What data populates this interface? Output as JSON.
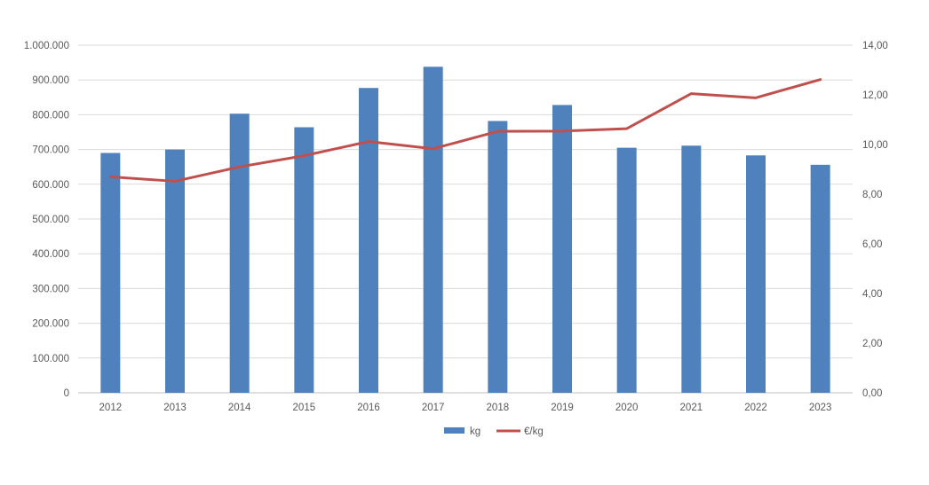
{
  "chart_data": {
    "type": "bar",
    "categories": [
      "2012",
      "2013",
      "2014",
      "2015",
      "2016",
      "2017",
      "2018",
      "2019",
      "2020",
      "2021",
      "2022",
      "2023"
    ],
    "series": [
      {
        "name": "kg",
        "type": "bar",
        "axis": "left",
        "color": "#4F81BD",
        "values": [
          690000,
          700000,
          803000,
          764000,
          877000,
          938000,
          782000,
          828000,
          705000,
          711000,
          683000,
          656000
        ]
      },
      {
        "name": "€/kg",
        "type": "line",
        "axis": "right",
        "color": "#C0504D",
        "values": [
          8.7,
          8.52,
          9.1,
          9.55,
          10.12,
          9.83,
          10.53,
          10.54,
          10.64,
          12.05,
          11.88,
          12.62
        ]
      }
    ],
    "y_left": {
      "ylim": [
        0,
        1000000
      ],
      "ticks": [
        "0",
        "100.000",
        "200.000",
        "300.000",
        "400.000",
        "500.000",
        "600.000",
        "700.000",
        "800.000",
        "900.000",
        "1.000.000"
      ]
    },
    "y_right": {
      "ylim": [
        0,
        14
      ],
      "ticks": [
        "0,00",
        "2,00",
        "4,00",
        "6,00",
        "8,00",
        "10,00",
        "12,00",
        "14,00"
      ]
    },
    "grid": true,
    "legend_position": "bottom",
    "title": "",
    "xlabel": "",
    "ylabel": ""
  }
}
